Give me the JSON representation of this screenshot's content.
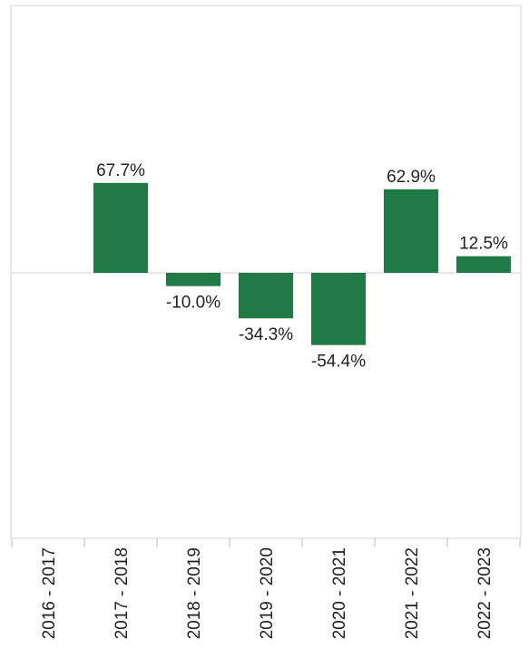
{
  "chart_data": {
    "type": "bar",
    "categories": [
      "2016 - 2017",
      "2017 - 2018",
      "2018 - 2019",
      "2019 - 2020",
      "2020 - 2021",
      "2021 - 2022",
      "2022 - 2023"
    ],
    "values": [
      null,
      67.7,
      -10.0,
      -34.3,
      -54.4,
      62.9,
      12.5
    ],
    "data_labels": [
      "",
      "67.7%",
      "-10.0%",
      "-34.3%",
      "-54.4%",
      "62.9%",
      "12.5%"
    ],
    "ylim": [
      -200,
      200
    ],
    "grid": false,
    "colors": {
      "bar": "#1f7a46",
      "zero_line": "#cfcfcf",
      "frame": "#d4d4d4"
    }
  }
}
